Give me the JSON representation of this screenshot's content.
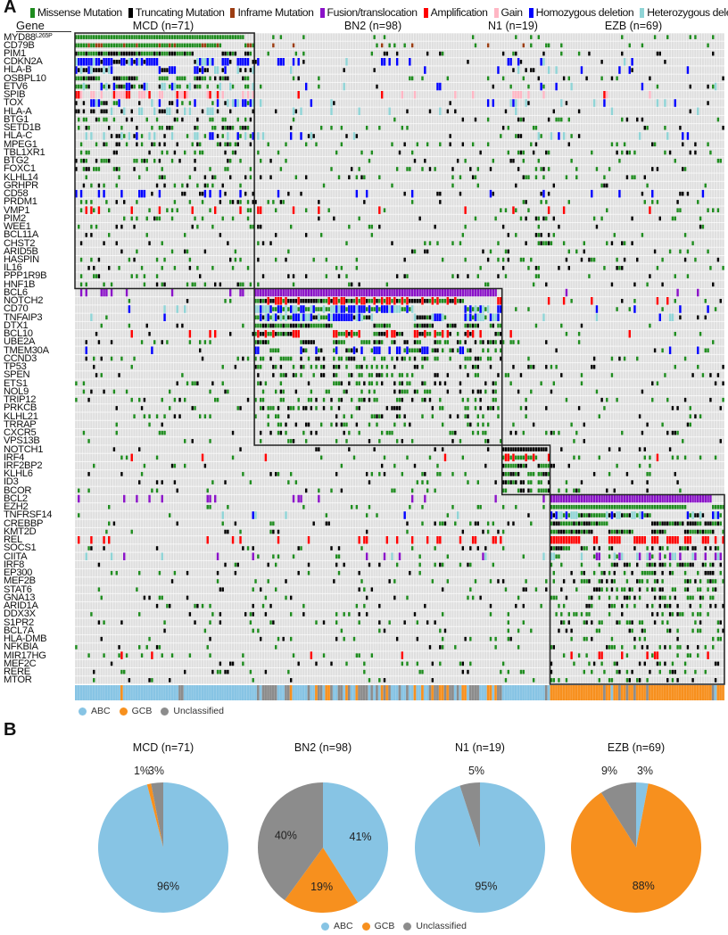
{
  "panel_a": {
    "letter": "A",
    "gene_header": "Gene",
    "alteration_legend": [
      {
        "key": "m",
        "label": "Missense Mutation",
        "color": "#1e8c1e"
      },
      {
        "key": "t",
        "label": "Truncating Mutation",
        "color": "#000000"
      },
      {
        "key": "i",
        "label": "Inframe Mutation",
        "color": "#9c3d12"
      },
      {
        "key": "f",
        "label": "Fusion/translocation",
        "color": "#8a12c8"
      },
      {
        "key": "a",
        "label": "Amplification",
        "color": "#ff0000"
      },
      {
        "key": "g",
        "label": "Gain",
        "color": "#ffb6c4"
      },
      {
        "key": "h",
        "label": "Homozygous deletion",
        "color": "#0000ff"
      },
      {
        "key": "e",
        "label": "Heterozygous deletion",
        "color": "#8fd4d6"
      }
    ],
    "subtype_legend": [
      {
        "label": "ABC",
        "color": "#87c4e4"
      },
      {
        "label": "GCB",
        "color": "#f7901e"
      },
      {
        "label": "Unclassified",
        "color": "#8c8c8c"
      }
    ]
  },
  "panel_b": {
    "letter": "B"
  },
  "chart_data": [
    {
      "type": "heatmap",
      "subtype": "oncoprint",
      "groups": [
        {
          "label": "MCD (n=71)",
          "name": "MCD",
          "n": 71,
          "gene_count": 31
        },
        {
          "label": "BN2 (n=98)",
          "name": "BN2",
          "n": 98,
          "gene_count": 19
        },
        {
          "label": "N1 (n=19)",
          "name": "N1",
          "n": 19,
          "gene_count": 6
        },
        {
          "label": "EZB (n=69)",
          "name": "EZB",
          "n": 69,
          "gene_count": 23
        }
      ],
      "genes": [
        "MYD88",
        "CD79B",
        "PIM1",
        "CDKN2A",
        "HLA-B",
        "OSBPL10",
        "ETV6",
        "SPIB",
        "TOX",
        "HLA-A",
        "BTG1",
        "SETD1B",
        "HLA-C",
        "MPEG1",
        "TBL1XR1",
        "BTG2",
        "FOXC1",
        "KLHL14",
        "GRHPR",
        "CD58",
        "PRDM1",
        "VMP1",
        "PIM2",
        "WEE1",
        "BCL11A",
        "CHST2",
        "ARID5B",
        "HASPIN",
        "IL16",
        "PPP1R9B",
        "HNF1B",
        "BCL6",
        "NOTCH2",
        "CD70",
        "TNFAIP3",
        "DTX1",
        "BCL10",
        "UBE2A",
        "TMEM30A",
        "CCND3",
        "TP53",
        "SPEN",
        "ETS1",
        "NOL9",
        "TRIP12",
        "PRKCB",
        "KLHL21",
        "TRRAP",
        "CXCR5",
        "VPS13B",
        "NOTCH1",
        "IRF4",
        "IRF2BP2",
        "KLHL6",
        "ID3",
        "BCOR",
        "BCL2",
        "EZH2",
        "TNFRSF14",
        "CREBBP",
        "KMT2D",
        "REL",
        "SOCS1",
        "CIITA",
        "IRF8",
        "EP300",
        "MEF2B",
        "STAT6",
        "GNA13",
        "ARID1A",
        "DDX3X",
        "S1PR2",
        "BCL7A",
        "HLA-DMB",
        "NFKBIA",
        "MIR17HG",
        "MEF2C",
        "RERE",
        "MTOR"
      ],
      "gene_superscripts": {
        "MYD88": "L265P"
      },
      "subtype_track_categories": [
        "ABC",
        "GCB",
        "Unclassified"
      ]
    },
    {
      "type": "pie",
      "charts": [
        {
          "title": "MCD (n=71)",
          "slices": [
            {
              "label": "ABC",
              "value": 96,
              "text": "96%"
            },
            {
              "label": "GCB",
              "value": 1,
              "text": "1%"
            },
            {
              "label": "Unclassified",
              "value": 3,
              "text": "3%"
            }
          ]
        },
        {
          "title": "BN2 (n=98)",
          "slices": [
            {
              "label": "ABC",
              "value": 41,
              "text": "41%"
            },
            {
              "label": "GCB",
              "value": 19,
              "text": "19%"
            },
            {
              "label": "Unclassified",
              "value": 40,
              "text": "40%"
            }
          ]
        },
        {
          "title": "N1 (n=19)",
          "slices": [
            {
              "label": "ABC",
              "value": 95,
              "text": "95%"
            },
            {
              "label": "GCB",
              "value": 0,
              "text": ""
            },
            {
              "label": "Unclassified",
              "value": 5,
              "text": "5%"
            }
          ]
        },
        {
          "title": "EZB (n=69)",
          "slices": [
            {
              "label": "ABC",
              "value": 3,
              "text": "3%"
            },
            {
              "label": "GCB",
              "value": 88,
              "text": "88%"
            },
            {
              "label": "Unclassified",
              "value": 9,
              "text": "9%"
            }
          ]
        }
      ],
      "legend": [
        "ABC",
        "GCB",
        "Unclassified"
      ],
      "colors": {
        "ABC": "#87c4e4",
        "GCB": "#f7901e",
        "Unclassified": "#8c8c8c"
      }
    }
  ]
}
